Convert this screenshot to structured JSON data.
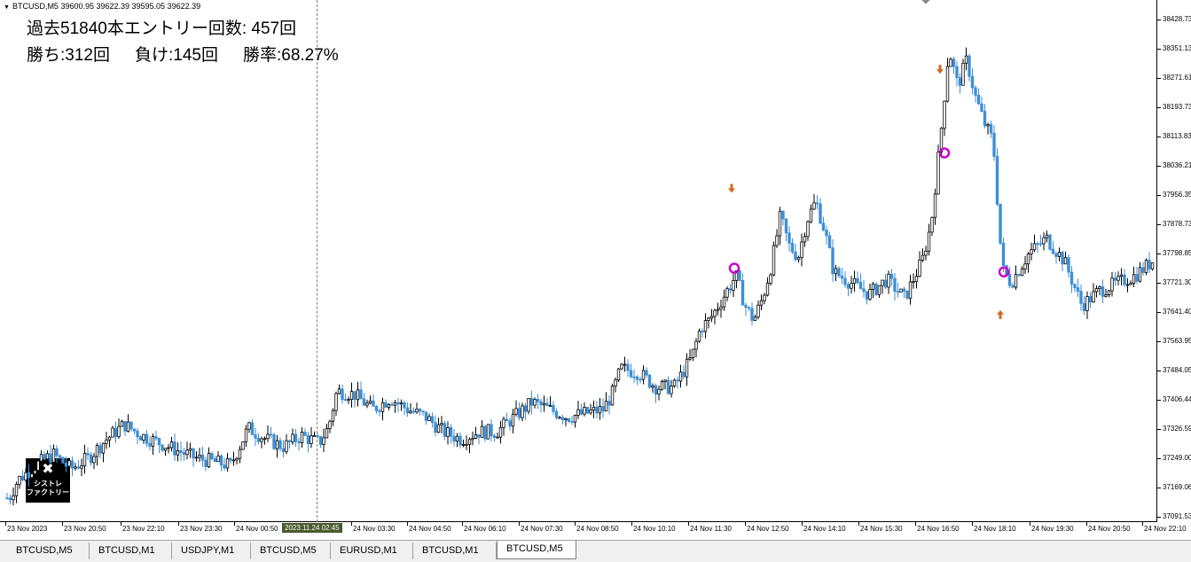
{
  "window": {
    "symbol_line": "BTCUSD,M5  39600.95 39622.39 39595.05 39622.39"
  },
  "stats": {
    "line1": "過去51840本エントリー回数: 457回",
    "wins": "勝ち:312回",
    "losses": "負け:145回",
    "winrate": "勝率:68.27%"
  },
  "logo": {
    "icon": "wrench-screwdriver-icon",
    "line1": "シストレ",
    "line2": "ファクトリー"
  },
  "price_scale": [
    "38428.73",
    "38351.13",
    "38271.61",
    "38193.73",
    "38113.83",
    "38036.21",
    "37956.35",
    "37878.73",
    "37798.85",
    "37721.30",
    "37641.40",
    "37563.95",
    "37484.05",
    "37406.44",
    "37326.59",
    "37249.00",
    "37169.06",
    "37091.53"
  ],
  "time_scale": [
    "23 Nov 2023",
    "23 Nov 20:50",
    "23 Nov 22:10",
    "23 Nov 23:30",
    "24 Nov 00:50",
    "24 Nov 03:30",
    "24 Nov 04:50",
    "24 Nov 06:10",
    "24 Nov 07:30",
    "24 Nov 08:50",
    "24 Nov 10:10",
    "24 Nov 11:30",
    "24 Nov 12:50",
    "24 Nov 14:10",
    "24 Nov 15:30",
    "24 Nov 16:50",
    "24 Nov 18:10",
    "24 Nov 19:30",
    "24 Nov 20:50",
    "24 Nov 22:10"
  ],
  "cursor_time": "2023.11.24 02:45",
  "tabs": [
    "BTCUSD,M5",
    "BTCUSD,M1",
    "USDJPY,M1",
    "BTCUSD,M5",
    "EURUSD,M1",
    "BTCUSD,M1",
    "BTCUSD,M5"
  ],
  "active_tab_index": 6,
  "colors": {
    "bull": "#000000",
    "bear": "#3d8fd6",
    "sell_arrow": "#d2691e",
    "buy_arrow": "#d2691e",
    "exit_circle": "#cc00cc"
  },
  "chart_data": {
    "type": "candlestick",
    "ylim": [
      37091.53,
      38428.73
    ],
    "close_path": [
      [
        0,
        37150
      ],
      [
        10,
        37140
      ],
      [
        20,
        37190
      ],
      [
        40,
        37230
      ],
      [
        60,
        37260
      ],
      [
        80,
        37220
      ],
      [
        100,
        37250
      ],
      [
        120,
        37300
      ],
      [
        140,
        37340
      ],
      [
        160,
        37310
      ],
      [
        180,
        37290
      ],
      [
        200,
        37270
      ],
      [
        220,
        37250
      ],
      [
        240,
        37240
      ],
      [
        260,
        37230
      ],
      [
        280,
        37330
      ],
      [
        300,
        37300
      ],
      [
        320,
        37280
      ],
      [
        340,
        37310
      ],
      [
        360,
        37290
      ],
      [
        370,
        37330
      ],
      [
        380,
        37430
      ],
      [
        400,
        37420
      ],
      [
        420,
        37380
      ],
      [
        440,
        37410
      ],
      [
        460,
        37380
      ],
      [
        480,
        37360
      ],
      [
        500,
        37320
      ],
      [
        520,
        37300
      ],
      [
        540,
        37320
      ],
      [
        560,
        37320
      ],
      [
        580,
        37360
      ],
      [
        600,
        37400
      ],
      [
        620,
        37380
      ],
      [
        640,
        37360
      ],
      [
        660,
        37370
      ],
      [
        680,
        37380
      ],
      [
        690,
        37420
      ],
      [
        700,
        37490
      ],
      [
        720,
        37480
      ],
      [
        740,
        37440
      ],
      [
        760,
        37440
      ],
      [
        780,
        37520
      ],
      [
        790,
        37600
      ],
      [
        800,
        37620
      ],
      [
        810,
        37660
      ],
      [
        820,
        37700
      ],
      [
        830,
        37740
      ],
      [
        840,
        37660
      ],
      [
        850,
        37620
      ],
      [
        860,
        37680
      ],
      [
        870,
        37770
      ],
      [
        880,
        37900
      ],
      [
        890,
        37820
      ],
      [
        900,
        37790
      ],
      [
        910,
        37890
      ],
      [
        920,
        37940
      ],
      [
        930,
        37860
      ],
      [
        940,
        37750
      ],
      [
        960,
        37720
      ],
      [
        980,
        37690
      ],
      [
        1000,
        37730
      ],
      [
        1020,
        37680
      ],
      [
        1040,
        37780
      ],
      [
        1050,
        37880
      ],
      [
        1060,
        38100
      ],
      [
        1070,
        38350
      ],
      [
        1080,
        38250
      ],
      [
        1090,
        38320
      ],
      [
        1100,
        38220
      ],
      [
        1110,
        38150
      ],
      [
        1120,
        38100
      ],
      [
        1130,
        37760
      ],
      [
        1140,
        37720
      ],
      [
        1160,
        37800
      ],
      [
        1180,
        37840
      ],
      [
        1200,
        37780
      ],
      [
        1210,
        37720
      ],
      [
        1220,
        37660
      ],
      [
        1240,
        37700
      ],
      [
        1260,
        37720
      ],
      [
        1280,
        37740
      ],
      [
        1300,
        37780
      ]
    ],
    "signals": [
      {
        "kind": "sell",
        "t": 825,
        "price": 37970
      },
      {
        "kind": "exit",
        "t": 828,
        "price": 37760
      },
      {
        "kind": "sell",
        "t": 1060,
        "price": 38290
      },
      {
        "kind": "exit",
        "t": 1065,
        "price": 38070
      },
      {
        "kind": "buy",
        "t": 1128,
        "price": 37640
      },
      {
        "kind": "exit",
        "t": 1132,
        "price": 37750
      }
    ]
  }
}
